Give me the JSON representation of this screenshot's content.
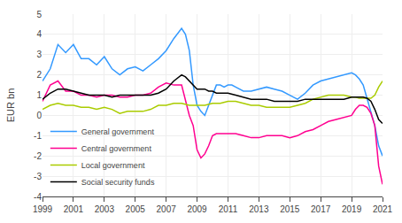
{
  "chart_data": {
    "type": "line",
    "y_label": "EUR bn",
    "xlim": [
      1999,
      2021
    ],
    "ylim": [
      -4,
      5
    ],
    "xticks": [
      1999,
      2001,
      2003,
      2005,
      2007,
      2009,
      2011,
      2013,
      2015,
      2017,
      2019,
      2021
    ],
    "yticks": [
      -4,
      -3,
      -2,
      -1,
      0,
      1,
      2,
      3,
      4,
      5
    ],
    "grid": true,
    "legend": "lower left",
    "series": [
      {
        "name": "General government",
        "color": "#3399FF",
        "x": [
          1999.0,
          1999.5,
          2000.0,
          2000.5,
          2001.0,
          2001.5,
          2002.0,
          2002.5,
          2003.0,
          2003.5,
          2004.0,
          2004.5,
          2005.0,
          2005.5,
          2006.0,
          2006.5,
          2007.0,
          2007.5,
          2008.0,
          2008.25,
          2008.5,
          2008.75,
          2009.0,
          2009.25,
          2009.5,
          2009.75,
          2010.0,
          2010.25,
          2010.5,
          2010.75,
          2011.0,
          2011.25,
          2011.5,
          2011.75,
          2012.0,
          2012.5,
          2013.0,
          2013.5,
          2014.0,
          2014.5,
          2015.0,
          2015.5,
          2016.0,
          2016.5,
          2017.0,
          2017.5,
          2018.0,
          2018.5,
          2019.0,
          2019.25,
          2019.5,
          2019.75,
          2020.0,
          2020.25,
          2020.5,
          2020.75,
          2021.0
        ],
        "values": [
          1.7,
          2.3,
          3.5,
          3.1,
          3.5,
          2.8,
          2.8,
          2.5,
          2.9,
          2.3,
          2.0,
          2.3,
          2.4,
          2.2,
          2.5,
          2.8,
          3.2,
          3.8,
          4.3,
          4.0,
          3.2,
          1.5,
          0.5,
          0.2,
          0.0,
          0.5,
          1.0,
          1.5,
          1.5,
          1.4,
          1.5,
          1.5,
          1.4,
          1.3,
          1.2,
          1.2,
          1.3,
          1.4,
          1.3,
          1.2,
          1.0,
          0.8,
          1.1,
          1.5,
          1.7,
          1.8,
          1.9,
          2.0,
          2.1,
          2.0,
          1.8,
          1.5,
          0.8,
          0.2,
          -0.5,
          -1.5,
          -2.0
        ]
      },
      {
        "name": "Central government",
        "color": "#FF0090",
        "x": [
          1999.0,
          1999.5,
          2000.0,
          2000.5,
          2001.0,
          2001.5,
          2002.0,
          2002.5,
          2003.0,
          2003.5,
          2004.0,
          2004.5,
          2005.0,
          2005.5,
          2006.0,
          2006.5,
          2007.0,
          2007.5,
          2008.0,
          2008.25,
          2008.5,
          2008.75,
          2009.0,
          2009.25,
          2009.5,
          2009.75,
          2010.0,
          2010.25,
          2010.5,
          2010.75,
          2011.0,
          2011.5,
          2012.0,
          2012.5,
          2013.0,
          2013.5,
          2014.0,
          2014.5,
          2015.0,
          2015.5,
          2016.0,
          2016.5,
          2017.0,
          2017.5,
          2018.0,
          2018.5,
          2019.0,
          2019.25,
          2019.5,
          2019.75,
          2020.0,
          2020.25,
          2020.5,
          2020.75,
          2021.0
        ],
        "values": [
          0.7,
          1.5,
          1.7,
          1.2,
          1.2,
          1.0,
          1.0,
          0.9,
          1.0,
          1.0,
          0.9,
          0.9,
          1.0,
          1.0,
          1.1,
          1.4,
          1.6,
          1.5,
          1.5,
          0.8,
          0.0,
          -0.5,
          -1.7,
          -2.1,
          -1.9,
          -1.5,
          -1.0,
          -0.9,
          -0.9,
          -0.9,
          -0.9,
          -0.9,
          -1.0,
          -1.1,
          -1.1,
          -1.0,
          -1.0,
          -1.0,
          -1.1,
          -1.0,
          -0.8,
          -0.7,
          -0.5,
          -0.3,
          -0.2,
          -0.1,
          0.0,
          0.3,
          0.5,
          0.5,
          0.4,
          0.1,
          -0.5,
          -2.5,
          -3.4
        ]
      },
      {
        "name": "Local government",
        "color": "#AACC00",
        "x": [
          1999.0,
          1999.5,
          2000.0,
          2000.5,
          2001.0,
          2001.5,
          2002.0,
          2002.5,
          2003.0,
          2003.5,
          2004.0,
          2004.5,
          2005.0,
          2005.5,
          2006.0,
          2006.5,
          2007.0,
          2007.5,
          2008.0,
          2008.5,
          2009.0,
          2009.5,
          2010.0,
          2010.5,
          2011.0,
          2011.5,
          2012.0,
          2012.5,
          2013.0,
          2013.5,
          2014.0,
          2014.5,
          2015.0,
          2015.5,
          2016.0,
          2016.5,
          2017.0,
          2017.5,
          2018.0,
          2018.5,
          2019.0,
          2019.25,
          2019.5,
          2019.75,
          2020.0,
          2020.25,
          2020.5,
          2020.75,
          2021.0
        ],
        "values": [
          0.3,
          0.5,
          0.6,
          0.5,
          0.5,
          0.4,
          0.4,
          0.3,
          0.4,
          0.3,
          0.1,
          0.2,
          0.2,
          0.2,
          0.3,
          0.5,
          0.5,
          0.6,
          0.6,
          0.5,
          0.5,
          0.5,
          0.6,
          0.6,
          0.7,
          0.7,
          0.6,
          0.5,
          0.5,
          0.4,
          0.4,
          0.4,
          0.4,
          0.5,
          0.6,
          0.8,
          0.9,
          1.0,
          1.0,
          1.0,
          0.9,
          0.9,
          0.85,
          0.85,
          0.85,
          0.85,
          1.0,
          1.4,
          1.7
        ]
      },
      {
        "name": "Social security funds",
        "color": "#000000",
        "x": [
          1999.0,
          1999.5,
          2000.0,
          2000.5,
          2001.0,
          2001.5,
          2002.0,
          2002.5,
          2003.0,
          2003.5,
          2004.0,
          2004.5,
          2005.0,
          2005.5,
          2006.0,
          2006.5,
          2007.0,
          2007.5,
          2008.0,
          2008.25,
          2008.5,
          2008.75,
          2009.0,
          2009.25,
          2009.5,
          2009.75,
          2010.0,
          2010.25,
          2010.5,
          2010.75,
          2011.0,
          2011.5,
          2012.0,
          2012.5,
          2013.0,
          2013.5,
          2014.0,
          2014.5,
          2015.0,
          2015.5,
          2016.0,
          2016.5,
          2017.0,
          2017.5,
          2018.0,
          2018.5,
          2019.0,
          2019.25,
          2019.5,
          2019.75,
          2020.0,
          2020.25,
          2020.5,
          2020.75,
          2021.0
        ],
        "values": [
          0.8,
          1.1,
          1.3,
          1.3,
          1.2,
          1.1,
          1.0,
          1.0,
          1.0,
          0.9,
          1.0,
          1.0,
          1.0,
          1.0,
          1.0,
          1.1,
          1.3,
          1.7,
          2.0,
          1.9,
          1.7,
          1.5,
          1.3,
          1.3,
          1.3,
          1.2,
          1.2,
          1.1,
          1.1,
          1.1,
          1.1,
          1.0,
          0.9,
          0.8,
          0.8,
          0.8,
          0.7,
          0.7,
          0.7,
          0.7,
          0.8,
          0.8,
          0.8,
          0.8,
          0.8,
          0.8,
          0.9,
          0.9,
          0.9,
          0.9,
          0.85,
          0.7,
          0.3,
          -0.2,
          -0.4
        ]
      }
    ]
  }
}
